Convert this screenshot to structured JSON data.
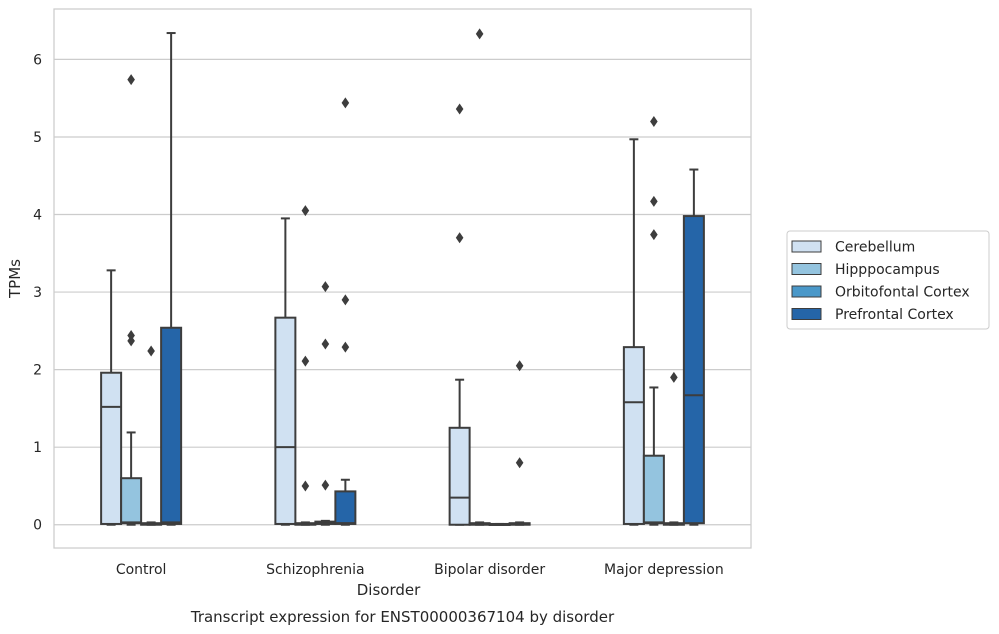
{
  "chart_data": {
    "type": "box",
    "caption": "Transcript expression for ENST00000367104 by disorder",
    "xlabel": "Disorder",
    "ylabel": "TPMs",
    "ylim": [
      -0.3,
      6.65
    ],
    "yticks": [
      0,
      1,
      2,
      3,
      4,
      5,
      6
    ],
    "grid": "horizontal",
    "legend_position": "right",
    "categories": [
      "Control",
      "Schizophrenia",
      "Bipolar disorder",
      "Major depression"
    ],
    "series": [
      {
        "name": "Cerebellum",
        "color": "#d0e1f2",
        "boxes": [
          {
            "category": "Control",
            "min": 0.0,
            "q1": 0.01,
            "median": 1.52,
            "q3": 1.96,
            "max": 3.28,
            "outliers": []
          },
          {
            "category": "Schizophrenia",
            "min": 0.0,
            "q1": 0.01,
            "median": 1.0,
            "q3": 2.67,
            "max": 3.95,
            "outliers": []
          },
          {
            "category": "Bipolar disorder",
            "min": 0.0,
            "q1": 0.0,
            "median": 0.35,
            "q3": 1.25,
            "max": 1.87,
            "outliers": [
              3.7,
              5.36
            ]
          },
          {
            "category": "Major depression",
            "min": 0.0,
            "q1": 0.01,
            "median": 1.58,
            "q3": 2.29,
            "max": 4.97,
            "outliers": []
          }
        ]
      },
      {
        "name": "Hipppocampus",
        "color": "#94c4df",
        "boxes": [
          {
            "category": "Control",
            "min": 0.0,
            "q1": 0.02,
            "median": 0.03,
            "q3": 0.6,
            "max": 1.19,
            "outliers": [
              2.37,
              2.44,
              5.74
            ]
          },
          {
            "category": "Schizophrenia",
            "min": 0.0,
            "q1": 0.0,
            "median": 0.01,
            "q3": 0.02,
            "max": 0.03,
            "outliers": [
              0.5,
              2.11,
              4.05
            ]
          },
          {
            "category": "Bipolar disorder",
            "min": 0.0,
            "q1": 0.0,
            "median": 0.01,
            "q3": 0.02,
            "max": 0.03,
            "outliers": [
              6.33
            ]
          },
          {
            "category": "Major depression",
            "min": 0.0,
            "q1": 0.02,
            "median": 0.03,
            "q3": 0.89,
            "max": 1.77,
            "outliers": [
              3.74,
              4.17,
              5.2
            ]
          }
        ]
      },
      {
        "name": "Orbitofontal Cortex",
        "color": "#4a98c9",
        "boxes": [
          {
            "category": "Control",
            "min": 0.0,
            "q1": 0.0,
            "median": 0.01,
            "q3": 0.02,
            "max": 0.03,
            "outliers": [
              2.24
            ]
          },
          {
            "category": "Schizophrenia",
            "min": 0.0,
            "q1": 0.01,
            "median": 0.02,
            "q3": 0.04,
            "max": 0.05,
            "outliers": [
              0.51,
              2.33,
              3.07
            ]
          },
          {
            "category": "Bipolar disorder",
            "min": 0.0,
            "q1": 0.0,
            "median": 0.0,
            "q3": 0.01,
            "max": 0.01,
            "outliers": []
          },
          {
            "category": "Major depression",
            "min": 0.0,
            "q1": 0.0,
            "median": 0.01,
            "q3": 0.02,
            "max": 0.03,
            "outliers": [
              1.9
            ]
          }
        ]
      },
      {
        "name": "Prefrontal Cortex",
        "color": "#2565a8",
        "boxes": [
          {
            "category": "Control",
            "min": 0.0,
            "q1": 0.01,
            "median": 0.03,
            "q3": 2.54,
            "max": 6.34,
            "outliers": []
          },
          {
            "category": "Schizophrenia",
            "min": 0.0,
            "q1": 0.01,
            "median": 0.02,
            "q3": 0.43,
            "max": 0.58,
            "outliers": [
              2.29,
              2.9,
              5.44
            ]
          },
          {
            "category": "Bipolar disorder",
            "min": 0.0,
            "q1": 0.0,
            "median": 0.01,
            "q3": 0.02,
            "max": 0.03,
            "outliers": [
              0.8,
              2.05
            ]
          },
          {
            "category": "Major depression",
            "min": 0.0,
            "q1": 0.02,
            "median": 1.67,
            "q3": 3.98,
            "max": 4.58,
            "outliers": []
          }
        ]
      }
    ]
  }
}
